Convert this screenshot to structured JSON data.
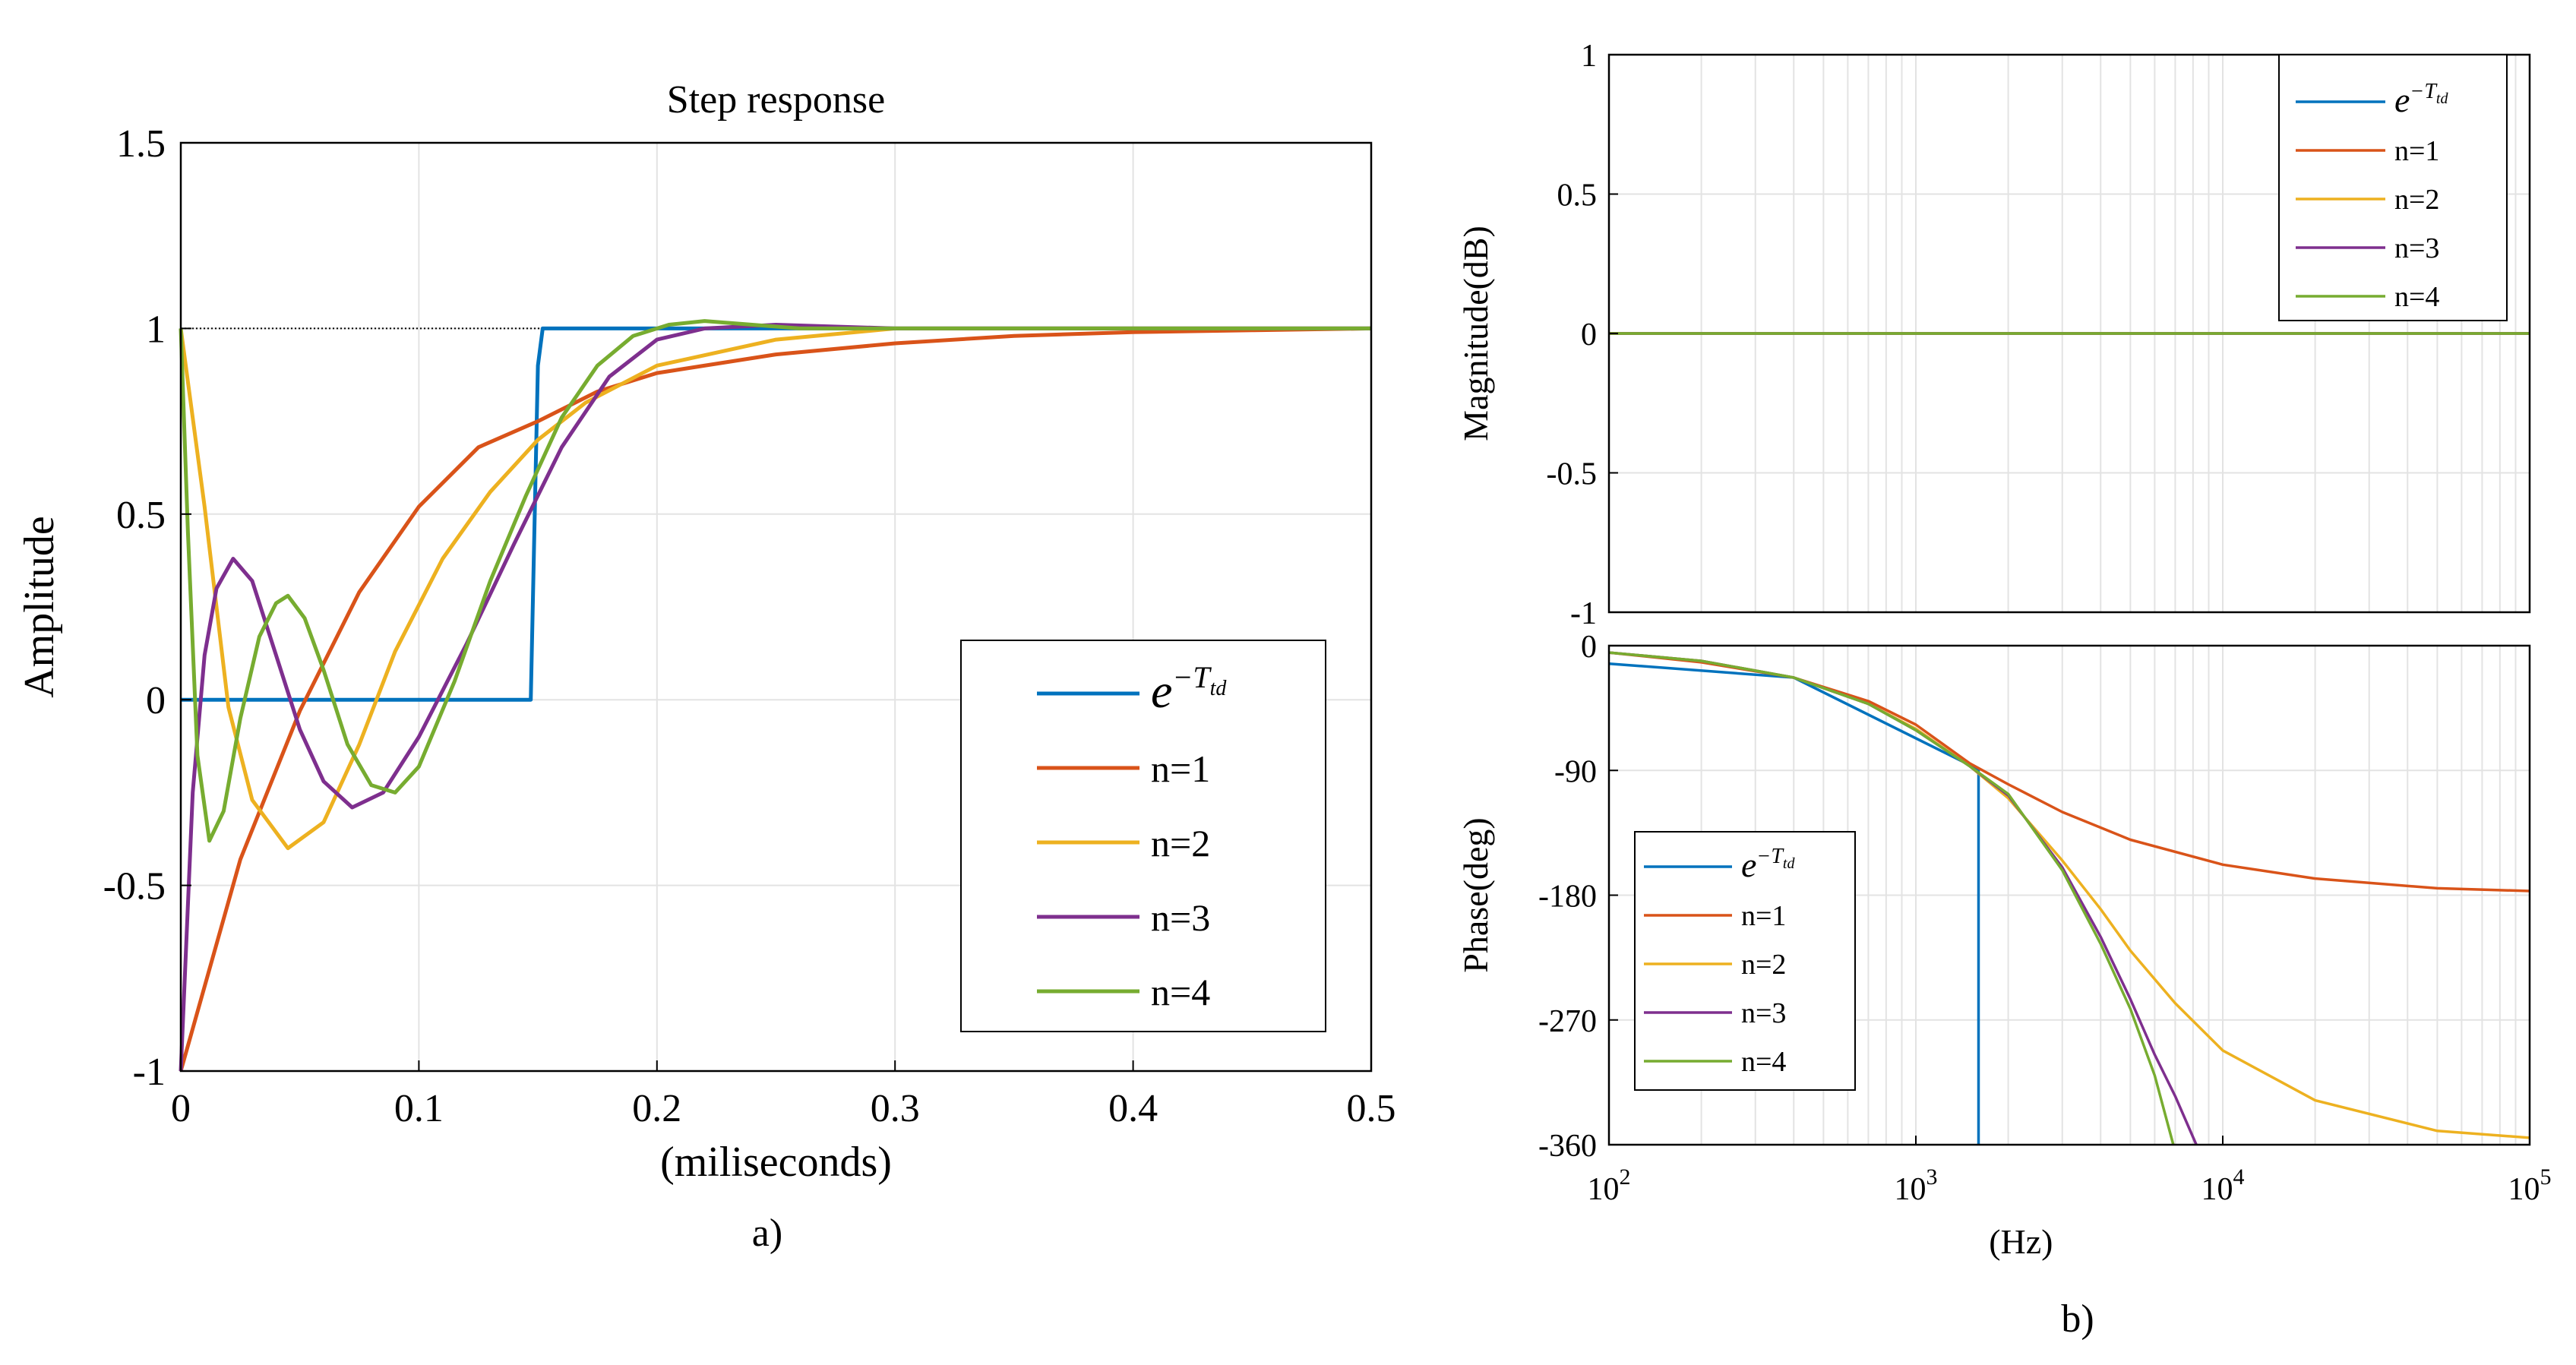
{
  "chart_data": [
    {
      "panel": "a)",
      "type": "line",
      "title": "Step response",
      "xlabel": "(miliseconds)",
      "ylabel": "Amplitude",
      "xlim": [
        0,
        0.5
      ],
      "ylim": [
        -1,
        1.5
      ],
      "xticks": [
        "0",
        "0.1",
        "0.2",
        "0.3",
        "0.4",
        "0.5"
      ],
      "yticks": [
        "1.5",
        "1",
        "0.5",
        "0",
        "-0.5",
        "-1"
      ],
      "grid": true,
      "legend_position": "bottom-right",
      "reference_line": {
        "y": 1,
        "style": "dotted"
      },
      "series": [
        {
          "name": "e^{-T_td}",
          "color": "#0072BD",
          "x": [
            0,
            0.005,
            0.145,
            0.147,
            0.15,
            0.152,
            0.5
          ],
          "y": [
            0,
            0,
            0,
            0,
            0.9,
            1,
            1
          ]
        },
        {
          "name": "n=1",
          "color": "#D95319",
          "x": [
            0,
            0.025,
            0.05,
            0.075,
            0.1,
            0.125,
            0.15,
            0.175,
            0.2,
            0.25,
            0.3,
            0.35,
            0.4,
            0.45,
            0.5
          ],
          "y": [
            -1,
            -0.43,
            -0.03,
            0.29,
            0.52,
            0.68,
            0.75,
            0.83,
            0.88,
            0.93,
            0.96,
            0.98,
            0.99,
            0.995,
            1
          ]
        },
        {
          "name": "n=2",
          "color": "#EDB120",
          "x": [
            0,
            0.01,
            0.02,
            0.03,
            0.045,
            0.06,
            0.075,
            0.09,
            0.11,
            0.13,
            0.15,
            0.17,
            0.2,
            0.25,
            0.3,
            0.5
          ],
          "y": [
            1,
            0.52,
            -0.02,
            -0.27,
            -0.4,
            -0.33,
            -0.12,
            0.13,
            0.38,
            0.56,
            0.7,
            0.8,
            0.9,
            0.97,
            1,
            1
          ]
        },
        {
          "name": "n=3",
          "color": "#7E2F8E",
          "x": [
            0,
            0.005,
            0.01,
            0.015,
            0.022,
            0.03,
            0.04,
            0.05,
            0.06,
            0.072,
            0.085,
            0.1,
            0.12,
            0.14,
            0.16,
            0.18,
            0.2,
            0.22,
            0.25,
            0.3,
            0.5
          ],
          "y": [
            -1,
            -0.25,
            0.12,
            0.3,
            0.38,
            0.32,
            0.12,
            -0.08,
            -0.22,
            -0.29,
            -0.25,
            -0.1,
            0.15,
            0.42,
            0.68,
            0.87,
            0.97,
            1,
            1.01,
            1,
            1
          ]
        },
        {
          "name": "n=4",
          "color": "#77AC30",
          "x": [
            0,
            0.003,
            0.007,
            0.012,
            0.018,
            0.025,
            0.033,
            0.04,
            0.045,
            0.052,
            0.06,
            0.07,
            0.08,
            0.09,
            0.1,
            0.115,
            0.13,
            0.145,
            0.16,
            0.175,
            0.19,
            0.205,
            0.22,
            0.24,
            0.26,
            0.3,
            0.5
          ],
          "y": [
            1,
            0.45,
            -0.15,
            -0.38,
            -0.3,
            -0.05,
            0.17,
            0.26,
            0.28,
            0.22,
            0.08,
            -0.12,
            -0.23,
            -0.25,
            -0.18,
            0.05,
            0.32,
            0.55,
            0.76,
            0.9,
            0.98,
            1.01,
            1.02,
            1.01,
            1,
            1,
            1
          ]
        }
      ]
    },
    {
      "panel": "b)",
      "type": "line",
      "subplot": "magnitude",
      "xscale": "log",
      "xlim": [
        100,
        100000
      ],
      "ylim": [
        -1,
        1
      ],
      "ylabel": "Magnitude(dB)",
      "yticks": [
        "1",
        "0.5",
        "0",
        "-0.5",
        "-1"
      ],
      "grid": true,
      "legend_position": "top-right",
      "series": [
        {
          "name": "e^{-T_td}",
          "color": "#0072BD",
          "x": [
            100,
            100000
          ],
          "y": [
            0,
            0
          ]
        },
        {
          "name": "n=1",
          "color": "#D95319",
          "x": [
            100,
            100000
          ],
          "y": [
            0,
            0
          ]
        },
        {
          "name": "n=2",
          "color": "#EDB120",
          "x": [
            100,
            100000
          ],
          "y": [
            0,
            0
          ]
        },
        {
          "name": "n=3",
          "color": "#7E2F8E",
          "x": [
            100,
            100000
          ],
          "y": [
            0,
            0
          ]
        },
        {
          "name": "n=4",
          "color": "#77AC30",
          "x": [
            100,
            100000
          ],
          "y": [
            0,
            0
          ]
        }
      ]
    },
    {
      "panel": "b)",
      "type": "line",
      "subplot": "phase",
      "xscale": "log",
      "xlim": [
        100,
        100000
      ],
      "ylim": [
        -360,
        0
      ],
      "xlabel": "(Hz)",
      "ylabel": "Phase(deg)",
      "xticks": [
        "10^2",
        "10^3",
        "10^4",
        "10^5"
      ],
      "yticks": [
        "0",
        "-90",
        "-180",
        "-270",
        "-360"
      ],
      "grid": true,
      "legend_position": "bottom-left",
      "series": [
        {
          "name": "e^{-T_td}",
          "color": "#0072BD",
          "x": [
            100,
            400,
            1590,
            1600,
            1600
          ],
          "y": [
            -13,
            -23,
            -89,
            -89,
            -360
          ]
        },
        {
          "name": "n=1",
          "color": "#D95319",
          "x": [
            100,
            200,
            400,
            700,
            1000,
            1500,
            2000,
            3000,
            5000,
            10000,
            20000,
            50000,
            100000
          ],
          "y": [
            -5,
            -12,
            -23,
            -40,
            -57,
            -85,
            -100,
            -120,
            -140,
            -158,
            -168,
            -175,
            -177
          ]
        },
        {
          "name": "n=2",
          "color": "#EDB120",
          "x": [
            100,
            200,
            400,
            700,
            1000,
            1500,
            2000,
            3000,
            4000,
            5000,
            7000,
            10000,
            20000,
            50000,
            100000
          ],
          "y": [
            -5,
            -11,
            -23,
            -42,
            -60,
            -87,
            -110,
            -155,
            -190,
            -220,
            -258,
            -292,
            -328,
            -350,
            -355
          ]
        },
        {
          "name": "n=3",
          "color": "#7E2F8E",
          "x": [
            100,
            200,
            400,
            700,
            1000,
            1500,
            2000,
            3000,
            4000,
            5000,
            6000,
            7000,
            8200
          ],
          "y": [
            -5,
            -11,
            -23,
            -42,
            -61,
            -87,
            -108,
            -160,
            -210,
            -255,
            -295,
            -325,
            -360
          ]
        },
        {
          "name": "n=4",
          "color": "#77AC30",
          "x": [
            100,
            200,
            400,
            700,
            1000,
            1500,
            2000,
            3000,
            4000,
            5000,
            6000,
            6900
          ],
          "y": [
            -5,
            -11,
            -23,
            -42,
            -61,
            -87,
            -107,
            -162,
            -215,
            -262,
            -310,
            -360
          ]
        }
      ]
    }
  ],
  "labels": {
    "panel_a": "a)",
    "panel_b": "b)",
    "legend_delay_base": "e",
    "legend_delay_exp": "−T",
    "legend_delay_sub": "td"
  }
}
